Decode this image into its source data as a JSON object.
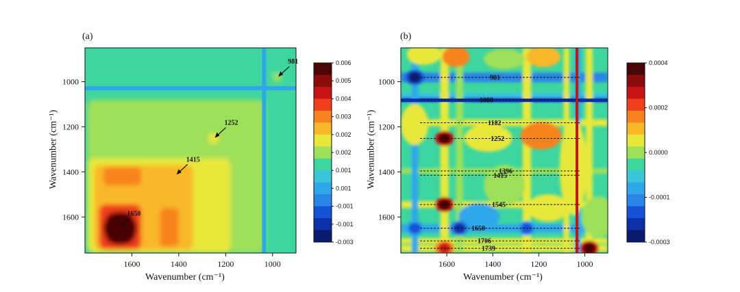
{
  "chart_data": [
    {
      "type": "heatmap",
      "panel_label": "(a)",
      "title": "",
      "xlabel": "Wavenumber (cm⁻¹)",
      "ylabel": "Wavenumber (cm⁻¹)",
      "xlim": [
        1800,
        900
      ],
      "ylim": [
        850,
        1760
      ],
      "xticks": [
        1600,
        1400,
        1200,
        1000
      ],
      "yticks": [
        1000,
        1200,
        1400,
        1600
      ],
      "colorbar": {
        "ticks": [
          "0.006",
          "0.005",
          "0.004",
          "0.003",
          "0.002",
          "0.002",
          "0.001",
          "0.001",
          "-0.001",
          "-0.001",
          "-0.003"
        ],
        "range": [
          -0.003,
          0.006
        ]
      },
      "annotations": [
        {
          "label": "981",
          "x": 981,
          "y": 981
        },
        {
          "label": "1252",
          "x": 1252,
          "y": 1252
        },
        {
          "label": "1415",
          "x": 1415,
          "y": 1415
        },
        {
          "label": "1650",
          "x": 1650,
          "y": 1650
        }
      ],
      "features": [
        {
          "x": 1650,
          "y": 1650,
          "value": 0.0055
        },
        {
          "x": 1450,
          "y": 1650,
          "value": 0.003
        },
        {
          "x": 1650,
          "y": 1450,
          "value": 0.003
        },
        {
          "x": 1450,
          "y": 1450,
          "value": 0.0025
        },
        {
          "x": 1252,
          "y": 1252,
          "value": 0.002
        },
        {
          "x": 981,
          "y": 981,
          "value": 0.0015
        }
      ]
    },
    {
      "type": "heatmap",
      "panel_label": "(b)",
      "title": "",
      "xlabel": "Wavenumber (cm⁻¹)",
      "ylabel": "Wavenumber (cm⁻¹)",
      "xlim": [
        1800,
        900
      ],
      "ylim": [
        850,
        1760
      ],
      "xticks": [
        1600,
        1400,
        1200,
        1000
      ],
      "yticks": [
        1000,
        1200,
        1400,
        1600
      ],
      "colorbar": {
        "ticks": [
          "0.0004",
          "0.0002",
          "0.0000",
          "-0.0001",
          "-0.0003"
        ],
        "range": [
          -0.0003,
          0.0004
        ]
      },
      "annotations": [
        {
          "label": "981",
          "y": 981
        },
        {
          "label": "1080",
          "y": 1080
        },
        {
          "label": "1182",
          "y": 1182
        },
        {
          "label": "1252",
          "y": 1252
        },
        {
          "label": "1396",
          "y": 1396
        },
        {
          "label": "1415",
          "y": 1415
        },
        {
          "label": "1545",
          "y": 1545
        },
        {
          "label": "1650",
          "y": 1650
        },
        {
          "label": "1706",
          "y": 1706
        },
        {
          "label": "1739",
          "y": 1739
        }
      ],
      "features": [
        {
          "x": 1739,
          "y": 981,
          "value": -0.0003
        },
        {
          "x": 1610,
          "y": 1252,
          "value": 0.0004
        },
        {
          "x": 1610,
          "y": 1545,
          "value": 0.0004
        },
        {
          "x": 1545,
          "y": 1650,
          "value": -0.00025
        },
        {
          "x": 1252,
          "y": 1650,
          "value": -0.0002
        },
        {
          "x": 1739,
          "y": 1650,
          "value": -0.0002
        },
        {
          "x": 981,
          "y": 1739,
          "value": 0.0004
        },
        {
          "x": 1610,
          "y": 1739,
          "value": 0.0003
        }
      ]
    }
  ],
  "colormap": [
    "#0a1a6e",
    "#0d2fa8",
    "#1552d8",
    "#2a86e6",
    "#2fa8ea",
    "#39c6d8",
    "#3ed6a0",
    "#9ee05a",
    "#e8e83a",
    "#f9b82a",
    "#f7831e",
    "#ef3f1c",
    "#c81414",
    "#8a0c0c",
    "#4a0606"
  ]
}
